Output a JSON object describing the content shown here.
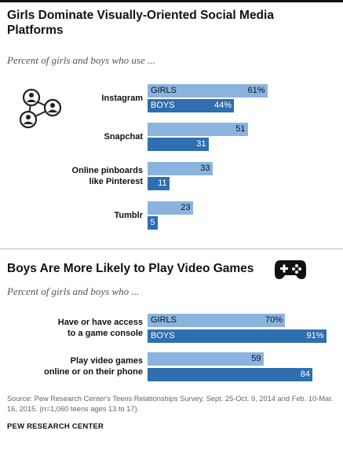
{
  "chart_data": [
    {
      "type": "bar",
      "title": "Girls Dominate Visually-Oriented Social Media Platforms",
      "subtitle": "Percent of girls and boys who use ...",
      "categories": [
        "Instagram",
        "Snapchat",
        "Online pinboards like Pinterest",
        "Tumblr"
      ],
      "series": [
        {
          "name": "GIRLS",
          "values": [
            61,
            51,
            33,
            23
          ],
          "color": "#8bb3e0"
        },
        {
          "name": "BOYS",
          "values": [
            44,
            31,
            11,
            5
          ],
          "color": "#2f6eb0"
        }
      ],
      "value_labels": {
        "GIRLS": [
          "61%",
          "51",
          "33",
          "23"
        ],
        "BOYS": [
          "44%",
          "31",
          "11",
          "5"
        ]
      }
    },
    {
      "type": "bar",
      "title": "Boys Are More Likely to Play Video Games",
      "subtitle": "Percent of girls and boys who ...",
      "categories": [
        "Have or have access to a game console",
        "Play video games online or on their phone"
      ],
      "series": [
        {
          "name": "GIRLS",
          "values": [
            70,
            59
          ],
          "color": "#8bb3e0"
        },
        {
          "name": "BOYS",
          "values": [
            91,
            84
          ],
          "color": "#2f6eb0"
        }
      ],
      "value_labels": {
        "GIRLS": [
          "70%",
          "59"
        ],
        "BOYS": [
          "91%",
          "84"
        ]
      }
    }
  ],
  "section1": {
    "title_line1": "Girls Dominate Visually-Oriented Social Media",
    "title_line2": "Platforms",
    "subtitle": "Percent of girls and boys who use ...",
    "labels": [
      [
        "Instagram"
      ],
      [
        "Snapchat"
      ],
      [
        "Online pinboards",
        "like Pinterest"
      ],
      [
        "Tumblr"
      ]
    ],
    "icon": "social-network-icon"
  },
  "section2": {
    "title": "Boys Are More Likely to Play Video Games",
    "subtitle": "Percent of girls and boys who ...",
    "labels": [
      [
        "Have or have access",
        "to a game console"
      ],
      [
        "Play video games",
        "online or on their phone"
      ]
    ],
    "icon": "gamepad-icon"
  },
  "source": "Source: Pew Research Center's Teens Relationships Survey, Sept. 25-Oct. 9, 2014 and Feb. 10-Mar. 16, 2015. (n=1,060 teens ages 13 to 17).",
  "credit": "PEW RESEARCH CENTER"
}
